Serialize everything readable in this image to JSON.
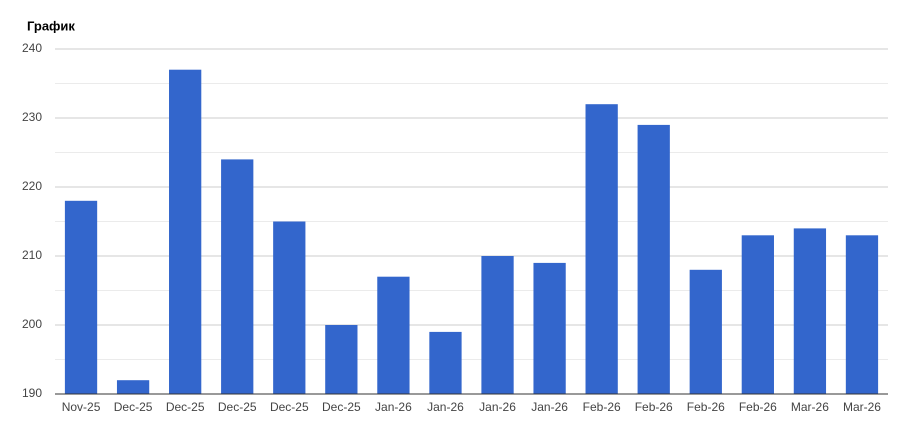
{
  "chart_data": {
    "type": "bar",
    "title": "График",
    "categories": [
      "Nov-25",
      "Dec-25",
      "Dec-25",
      "Dec-25",
      "Dec-25",
      "Dec-25",
      "Jan-26",
      "Jan-26",
      "Jan-26",
      "Jan-26",
      "Feb-26",
      "Feb-26",
      "Feb-26",
      "Feb-26",
      "Mar-26",
      "Mar-26"
    ],
    "values": [
      218,
      192,
      237,
      224,
      215,
      200,
      207,
      199,
      210,
      209,
      232,
      229,
      208,
      213,
      214,
      213
    ],
    "color": "#3366cc",
    "ylim": [
      190,
      240
    ],
    "yticks": [
      190,
      200,
      210,
      220,
      230,
      240
    ],
    "minor_yticks": [
      195,
      205,
      215,
      225,
      235
    ],
    "grid": true
  }
}
